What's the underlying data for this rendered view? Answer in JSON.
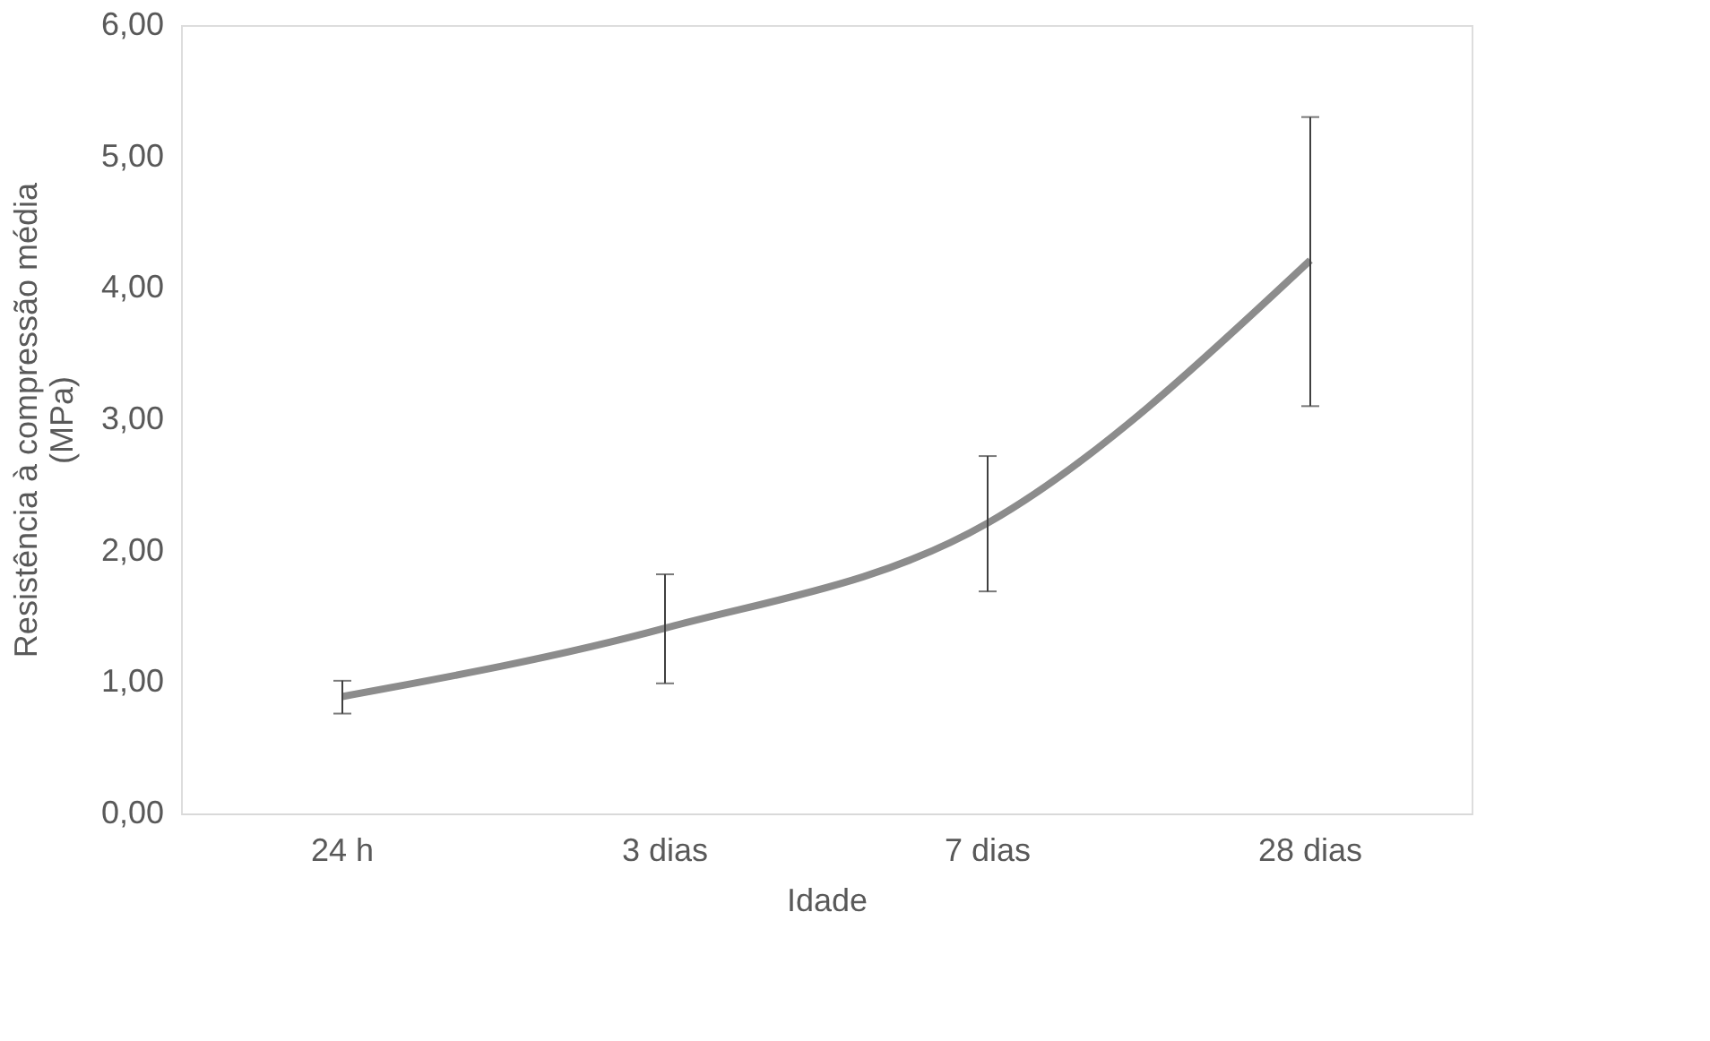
{
  "chart_data": {
    "type": "line",
    "xlabel": "Idade",
    "ylabel": "Resistência à compressão média\n(MPa)",
    "categories": [
      "24 h",
      "3 dias",
      "7 dias",
      "28 dias"
    ],
    "series": [
      {
        "color": "#8c8c8c",
        "values": [
          0.89,
          1.41,
          2.21,
          4.21
        ],
        "errors": [
          [
            0.76,
            1.01
          ],
          [
            0.99,
            1.82
          ],
          [
            1.69,
            2.72
          ],
          [
            3.1,
            5.3
          ]
        ]
      }
    ],
    "ylim": [
      0,
      6
    ],
    "yticks": [
      {
        "value": 0,
        "label": "0,00"
      },
      {
        "value": 1,
        "label": "1,00"
      },
      {
        "value": 2,
        "label": "2,00"
      },
      {
        "value": 3,
        "label": "3,00"
      },
      {
        "value": 4,
        "label": "4,00"
      },
      {
        "value": 5,
        "label": "5,00"
      },
      {
        "value": 6,
        "label": "6,00"
      }
    ],
    "grid": false,
    "marker": "none",
    "line_style": "solid"
  }
}
